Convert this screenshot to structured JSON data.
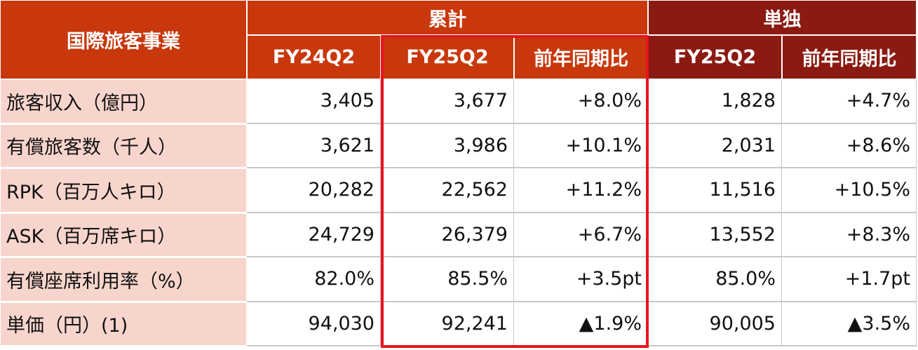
{
  "table": {
    "corner": "国際旅客事業",
    "groups": [
      "累計",
      "単独"
    ],
    "columns": [
      "FY24Q2",
      "FY25Q2",
      "前年同期比",
      "FY25Q2",
      "前年同期比"
    ],
    "rows": [
      {
        "label": "旅客収入（億円）",
        "cells": [
          "3,405",
          "3,677",
          "+8.0%",
          "1,828",
          "+4.7%"
        ]
      },
      {
        "label": "有償旅客数（千人）",
        "cells": [
          "3,621",
          "3,986",
          "+10.1%",
          "2,031",
          "+8.6%"
        ]
      },
      {
        "label": "RPK（百万人キロ）",
        "cells": [
          "20,282",
          "22,562",
          "+11.2%",
          "11,516",
          "+10.5%"
        ]
      },
      {
        "label": "ASK（百万席キロ）",
        "cells": [
          "24,729",
          "26,379",
          "+6.7%",
          "13,552",
          "+8.3%"
        ]
      },
      {
        "label": "有償座席利用率（%）",
        "cells": [
          "82.0%",
          "85.5%",
          "+3.5pt",
          "85.0%",
          "+1.7pt"
        ]
      },
      {
        "label": "単価（円）(1)",
        "cells": [
          "94,030",
          "92,241",
          "▲1.9%",
          "90,005",
          "▲3.5%"
        ]
      }
    ]
  }
}
